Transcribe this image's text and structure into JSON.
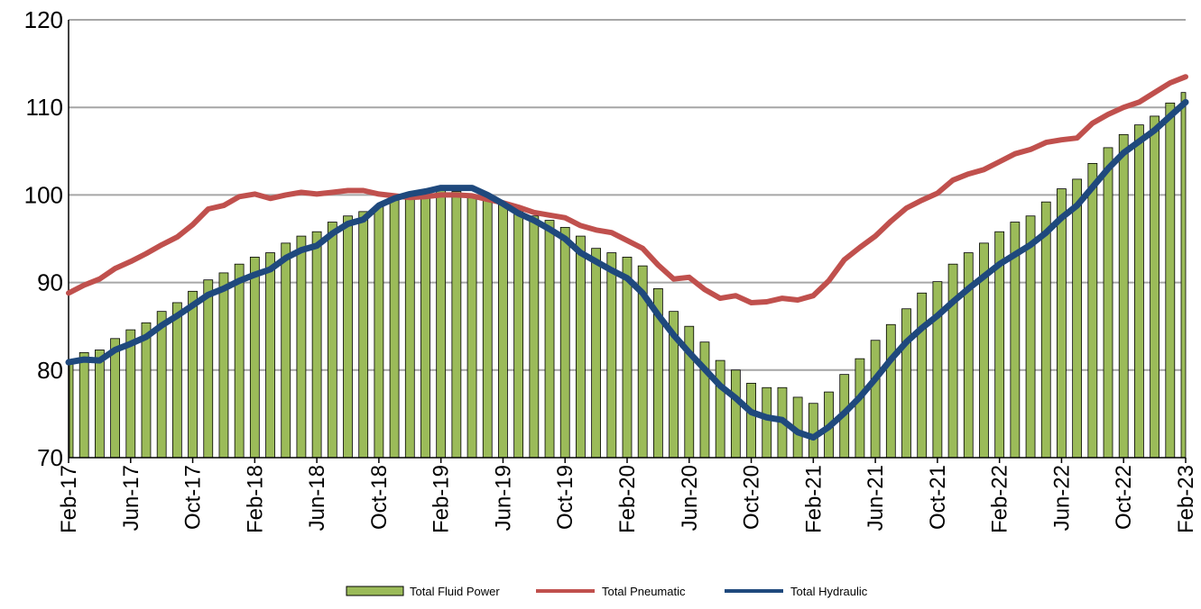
{
  "chart_data": {
    "type": "bar+line",
    "title": "",
    "xlabel": "",
    "ylabel": "",
    "ylim": [
      70,
      120
    ],
    "yticks": [
      70,
      80,
      90,
      100,
      110,
      120
    ],
    "grid": true,
    "legend_position": "bottom",
    "x": [
      "Feb-17",
      "Mar-17",
      "Apr-17",
      "May-17",
      "Jun-17",
      "Jul-17",
      "Aug-17",
      "Sep-17",
      "Oct-17",
      "Nov-17",
      "Dec-17",
      "Jan-18",
      "Feb-18",
      "Mar-18",
      "Apr-18",
      "May-18",
      "Jun-18",
      "Jul-18",
      "Aug-18",
      "Sep-18",
      "Oct-18",
      "Nov-18",
      "Dec-18",
      "Jan-19",
      "Feb-19",
      "Mar-19",
      "Apr-19",
      "May-19",
      "Jun-19",
      "Jul-19",
      "Aug-19",
      "Sep-19",
      "Oct-19",
      "Nov-19",
      "Dec-19",
      "Jan-20",
      "Feb-20",
      "Mar-20",
      "Apr-20",
      "May-20",
      "Jun-20",
      "Jul-20",
      "Aug-20",
      "Sep-20",
      "Oct-20",
      "Nov-20",
      "Dec-20",
      "Jan-21",
      "Feb-21",
      "Mar-21",
      "Apr-21",
      "May-21",
      "Jun-21",
      "Jul-21",
      "Aug-21",
      "Sep-21",
      "Oct-21",
      "Nov-21",
      "Dec-21",
      "Jan-22",
      "Feb-22",
      "Mar-22",
      "Apr-22",
      "May-22",
      "Jun-22",
      "Jul-22",
      "Aug-22",
      "Sep-22",
      "Oct-22",
      "Nov-22",
      "Dec-22",
      "Jan-23",
      "Feb-23"
    ],
    "xtick_labels": [
      "Feb-17",
      "Jun-17",
      "Oct-17",
      "Feb-18",
      "Jun-18",
      "Oct-18",
      "Feb-19",
      "Jun-19",
      "Oct-19",
      "Feb-20",
      "Jun-20",
      "Oct-20",
      "Feb-21",
      "Jun-21",
      "Oct-21",
      "Feb-22",
      "Jun-22",
      "Oct-22",
      "Feb-23"
    ],
    "series": [
      {
        "name": "Total Fluid Power",
        "kind": "bar",
        "color": "#9BBB59",
        "values": [
          81.0,
          82.0,
          82.3,
          83.6,
          84.6,
          85.4,
          86.7,
          87.7,
          89.0,
          90.3,
          91.1,
          92.1,
          92.9,
          93.4,
          94.5,
          95.3,
          95.8,
          96.9,
          97.6,
          98.1,
          98.7,
          99.5,
          100.2,
          100.4,
          100.5,
          100.4,
          99.8,
          99.6,
          99.2,
          98.2,
          97.6,
          97.1,
          96.3,
          95.3,
          93.9,
          93.4,
          92.9,
          91.9,
          89.3,
          86.7,
          85.0,
          83.2,
          81.1,
          80.0,
          78.5,
          78.0,
          78.0,
          76.9,
          76.2,
          77.5,
          79.5,
          81.3,
          83.4,
          85.2,
          87.0,
          88.8,
          90.1,
          92.1,
          93.4,
          94.5,
          95.8,
          96.9,
          97.6,
          99.2,
          100.7,
          101.8,
          103.6,
          105.4,
          106.9,
          108.0,
          109.0,
          110.5,
          111.7
        ]
      },
      {
        "name": "Total Pneumatic",
        "kind": "line",
        "color": "#C0504D",
        "values": [
          88.8,
          89.7,
          90.4,
          91.6,
          92.4,
          93.3,
          94.3,
          95.2,
          96.6,
          98.4,
          98.8,
          99.8,
          100.1,
          99.6,
          100.0,
          100.3,
          100.1,
          100.3,
          100.5,
          100.5,
          100.1,
          99.9,
          99.7,
          99.8,
          100.0,
          100.0,
          99.9,
          99.5,
          99.1,
          98.6,
          98.0,
          97.7,
          97.4,
          96.5,
          96.0,
          95.7,
          94.8,
          93.9,
          92.0,
          90.4,
          90.6,
          89.2,
          88.2,
          88.5,
          87.7,
          87.8,
          88.2,
          88.0,
          88.5,
          90.2,
          92.6,
          94.0,
          95.3,
          97.0,
          98.5,
          99.4,
          100.2,
          101.7,
          102.4,
          102.9,
          103.8,
          104.7,
          105.2,
          106.0,
          106.3,
          106.5,
          108.2,
          109.2,
          110.0,
          110.6,
          111.7,
          112.8,
          113.5
        ]
      },
      {
        "name": "Total Hydraulic",
        "kind": "line",
        "color": "#1F497D",
        "values": [
          80.9,
          81.2,
          81.1,
          82.3,
          83.0,
          83.8,
          85.1,
          86.2,
          87.4,
          88.6,
          89.3,
          90.2,
          90.9,
          91.5,
          92.8,
          93.7,
          94.2,
          95.6,
          96.7,
          97.2,
          98.8,
          99.6,
          100.1,
          100.4,
          100.8,
          100.8,
          100.8,
          100.0,
          99.0,
          97.9,
          97.1,
          96.1,
          95.0,
          93.4,
          92.4,
          91.4,
          90.5,
          88.8,
          86.3,
          84.0,
          82.0,
          80.1,
          78.2,
          76.8,
          75.2,
          74.6,
          74.3,
          72.9,
          72.3,
          73.5,
          75.1,
          76.9,
          79.0,
          81.2,
          83.2,
          84.8,
          86.2,
          87.8,
          89.3,
          90.7,
          92.1,
          93.2,
          94.3,
          95.7,
          97.4,
          98.8,
          100.9,
          103.0,
          104.8,
          106.1,
          107.4,
          109.0,
          110.6
        ]
      }
    ]
  }
}
